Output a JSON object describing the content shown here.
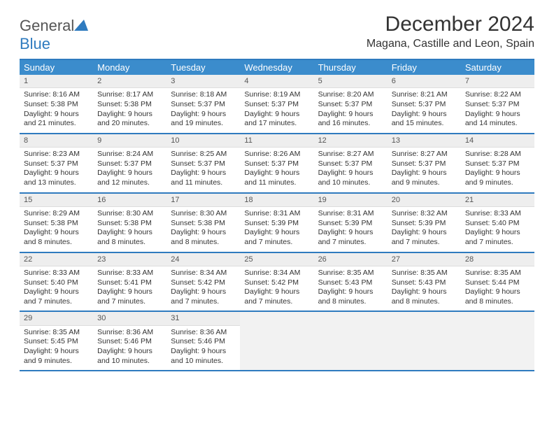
{
  "brand": {
    "name_part1": "General",
    "name_part2": "Blue"
  },
  "title": "December 2024",
  "location": "Magana, Castille and Leon, Spain",
  "colors": {
    "header_bar": "#3b8ccc",
    "border": "#2f7bbf",
    "daynum_bg": "#eeeeee",
    "empty_bg": "#f2f2f2"
  },
  "dow": [
    "Sunday",
    "Monday",
    "Tuesday",
    "Wednesday",
    "Thursday",
    "Friday",
    "Saturday"
  ],
  "weeks": [
    [
      {
        "n": "1",
        "sr": "Sunrise: 8:16 AM",
        "ss": "Sunset: 5:38 PM",
        "dl": "Daylight: 9 hours and 21 minutes."
      },
      {
        "n": "2",
        "sr": "Sunrise: 8:17 AM",
        "ss": "Sunset: 5:38 PM",
        "dl": "Daylight: 9 hours and 20 minutes."
      },
      {
        "n": "3",
        "sr": "Sunrise: 8:18 AM",
        "ss": "Sunset: 5:37 PM",
        "dl": "Daylight: 9 hours and 19 minutes."
      },
      {
        "n": "4",
        "sr": "Sunrise: 8:19 AM",
        "ss": "Sunset: 5:37 PM",
        "dl": "Daylight: 9 hours and 17 minutes."
      },
      {
        "n": "5",
        "sr": "Sunrise: 8:20 AM",
        "ss": "Sunset: 5:37 PM",
        "dl": "Daylight: 9 hours and 16 minutes."
      },
      {
        "n": "6",
        "sr": "Sunrise: 8:21 AM",
        "ss": "Sunset: 5:37 PM",
        "dl": "Daylight: 9 hours and 15 minutes."
      },
      {
        "n": "7",
        "sr": "Sunrise: 8:22 AM",
        "ss": "Sunset: 5:37 PM",
        "dl": "Daylight: 9 hours and 14 minutes."
      }
    ],
    [
      {
        "n": "8",
        "sr": "Sunrise: 8:23 AM",
        "ss": "Sunset: 5:37 PM",
        "dl": "Daylight: 9 hours and 13 minutes."
      },
      {
        "n": "9",
        "sr": "Sunrise: 8:24 AM",
        "ss": "Sunset: 5:37 PM",
        "dl": "Daylight: 9 hours and 12 minutes."
      },
      {
        "n": "10",
        "sr": "Sunrise: 8:25 AM",
        "ss": "Sunset: 5:37 PM",
        "dl": "Daylight: 9 hours and 11 minutes."
      },
      {
        "n": "11",
        "sr": "Sunrise: 8:26 AM",
        "ss": "Sunset: 5:37 PM",
        "dl": "Daylight: 9 hours and 11 minutes."
      },
      {
        "n": "12",
        "sr": "Sunrise: 8:27 AM",
        "ss": "Sunset: 5:37 PM",
        "dl": "Daylight: 9 hours and 10 minutes."
      },
      {
        "n": "13",
        "sr": "Sunrise: 8:27 AM",
        "ss": "Sunset: 5:37 PM",
        "dl": "Daylight: 9 hours and 9 minutes."
      },
      {
        "n": "14",
        "sr": "Sunrise: 8:28 AM",
        "ss": "Sunset: 5:37 PM",
        "dl": "Daylight: 9 hours and 9 minutes."
      }
    ],
    [
      {
        "n": "15",
        "sr": "Sunrise: 8:29 AM",
        "ss": "Sunset: 5:38 PM",
        "dl": "Daylight: 9 hours and 8 minutes."
      },
      {
        "n": "16",
        "sr": "Sunrise: 8:30 AM",
        "ss": "Sunset: 5:38 PM",
        "dl": "Daylight: 9 hours and 8 minutes."
      },
      {
        "n": "17",
        "sr": "Sunrise: 8:30 AM",
        "ss": "Sunset: 5:38 PM",
        "dl": "Daylight: 9 hours and 8 minutes."
      },
      {
        "n": "18",
        "sr": "Sunrise: 8:31 AM",
        "ss": "Sunset: 5:39 PM",
        "dl": "Daylight: 9 hours and 7 minutes."
      },
      {
        "n": "19",
        "sr": "Sunrise: 8:31 AM",
        "ss": "Sunset: 5:39 PM",
        "dl": "Daylight: 9 hours and 7 minutes."
      },
      {
        "n": "20",
        "sr": "Sunrise: 8:32 AM",
        "ss": "Sunset: 5:39 PM",
        "dl": "Daylight: 9 hours and 7 minutes."
      },
      {
        "n": "21",
        "sr": "Sunrise: 8:33 AM",
        "ss": "Sunset: 5:40 PM",
        "dl": "Daylight: 9 hours and 7 minutes."
      }
    ],
    [
      {
        "n": "22",
        "sr": "Sunrise: 8:33 AM",
        "ss": "Sunset: 5:40 PM",
        "dl": "Daylight: 9 hours and 7 minutes."
      },
      {
        "n": "23",
        "sr": "Sunrise: 8:33 AM",
        "ss": "Sunset: 5:41 PM",
        "dl": "Daylight: 9 hours and 7 minutes."
      },
      {
        "n": "24",
        "sr": "Sunrise: 8:34 AM",
        "ss": "Sunset: 5:42 PM",
        "dl": "Daylight: 9 hours and 7 minutes."
      },
      {
        "n": "25",
        "sr": "Sunrise: 8:34 AM",
        "ss": "Sunset: 5:42 PM",
        "dl": "Daylight: 9 hours and 7 minutes."
      },
      {
        "n": "26",
        "sr": "Sunrise: 8:35 AM",
        "ss": "Sunset: 5:43 PM",
        "dl": "Daylight: 9 hours and 8 minutes."
      },
      {
        "n": "27",
        "sr": "Sunrise: 8:35 AM",
        "ss": "Sunset: 5:43 PM",
        "dl": "Daylight: 9 hours and 8 minutes."
      },
      {
        "n": "28",
        "sr": "Sunrise: 8:35 AM",
        "ss": "Sunset: 5:44 PM",
        "dl": "Daylight: 9 hours and 8 minutes."
      }
    ],
    [
      {
        "n": "29",
        "sr": "Sunrise: 8:35 AM",
        "ss": "Sunset: 5:45 PM",
        "dl": "Daylight: 9 hours and 9 minutes."
      },
      {
        "n": "30",
        "sr": "Sunrise: 8:36 AM",
        "ss": "Sunset: 5:46 PM",
        "dl": "Daylight: 9 hours and 10 minutes."
      },
      {
        "n": "31",
        "sr": "Sunrise: 8:36 AM",
        "ss": "Sunset: 5:46 PM",
        "dl": "Daylight: 9 hours and 10 minutes."
      },
      {
        "empty": true
      },
      {
        "empty": true
      },
      {
        "empty": true
      },
      {
        "empty": true
      }
    ]
  ]
}
